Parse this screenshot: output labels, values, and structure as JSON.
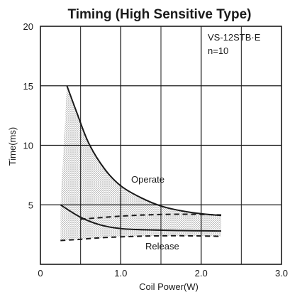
{
  "chart_data": {
    "type": "line",
    "title": "Timing (High Sensitive Type)",
    "xlabel": "Coil Power(W)",
    "ylabel": "Time(ms)",
    "xlim": [
      0,
      3.0
    ],
    "ylim": [
      0,
      20
    ],
    "x_ticks": [
      "0",
      "1.0",
      "2.0",
      "3.0"
    ],
    "y_ticks": [
      "5",
      "10",
      "15",
      "20"
    ],
    "grid": true,
    "annotations": [
      "VS-12STB·E",
      "n=10"
    ],
    "colors": {
      "ink": "#1a1a1a",
      "band": "#9a9a9a"
    },
    "series": [
      {
        "name": "Operate",
        "upper": {
          "x": [
            0.33,
            0.45,
            0.6,
            0.8,
            1.0,
            1.25,
            1.5,
            1.75,
            2.0,
            2.25
          ],
          "y": [
            15.0,
            12.8,
            10.2,
            8.0,
            6.6,
            5.6,
            4.9,
            4.5,
            4.25,
            4.1
          ]
        },
        "lower": {
          "x": [
            0.5,
            0.7,
            1.0,
            1.3,
            1.6,
            1.9,
            2.25
          ],
          "y": [
            3.8,
            3.9,
            4.05,
            4.15,
            4.2,
            4.2,
            4.15
          ]
        }
      },
      {
        "name": "Release",
        "upper": {
          "x": [
            0.25,
            0.5,
            0.75,
            1.0,
            1.3,
            1.6,
            1.9,
            2.25
          ],
          "y": [
            5.0,
            3.95,
            3.3,
            3.0,
            2.9,
            2.85,
            2.82,
            2.8
          ]
        },
        "lower": {
          "x": [
            0.25,
            0.5,
            0.8,
            1.2,
            1.6,
            2.0,
            2.25
          ],
          "y": [
            2.0,
            2.1,
            2.25,
            2.35,
            2.4,
            2.38,
            2.35
          ]
        }
      }
    ]
  }
}
